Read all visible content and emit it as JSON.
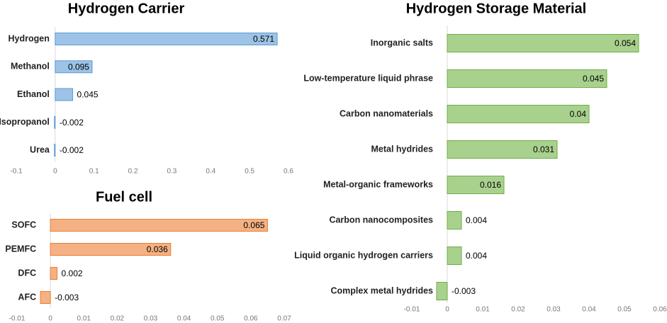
{
  "chart_data": [
    {
      "type": "barh",
      "title": "Hydrogen Carrier",
      "categories": [
        "Hydrogen",
        "Methanol",
        "Ethanol",
        "Isopropanol",
        "Urea"
      ],
      "values": [
        0.571,
        0.095,
        0.045,
        -0.002,
        -0.002
      ],
      "color": "#9dc3e6",
      "edge_color": "#5b9bd5",
      "xlim": [
        -0.1,
        0.6
      ],
      "xticks": [
        -0.1,
        0,
        0.1,
        0.2,
        0.3,
        0.4,
        0.5,
        0.6
      ],
      "grid": false
    },
    {
      "type": "barh",
      "title": "Fuel cell",
      "categories": [
        "SOFC",
        "PEMFC",
        "DFC",
        "AFC"
      ],
      "values": [
        0.065,
        0.036,
        0.002,
        -0.003
      ],
      "color": "#f4b183",
      "edge_color": "#ed7d31",
      "xlim": [
        -0.01,
        0.07
      ],
      "xticks": [
        -0.01,
        0,
        0.01,
        0.02,
        0.03,
        0.04,
        0.05,
        0.06,
        0.07
      ],
      "grid": false
    },
    {
      "type": "barh",
      "title": "Hydrogen Storage Material",
      "categories": [
        "Inorganic salts",
        "Low-temperature liquid phrase",
        "Carbon nanomaterials",
        "Metal hydrides",
        "Metal-organic frameworks",
        "Carbon nanocomposites",
        "Liquid organic hydrogen carriers",
        "Complex metal hydrides"
      ],
      "values": [
        0.054,
        0.045,
        0.04,
        0.031,
        0.016,
        0.004,
        0.004,
        -0.003
      ],
      "color": "#a9d18e",
      "edge_color": "#70ad47",
      "xlim": [
        -0.01,
        0.06
      ],
      "xticks": [
        -0.01,
        0,
        0.01,
        0.02,
        0.03,
        0.04,
        0.05,
        0.06
      ],
      "grid": false
    }
  ]
}
